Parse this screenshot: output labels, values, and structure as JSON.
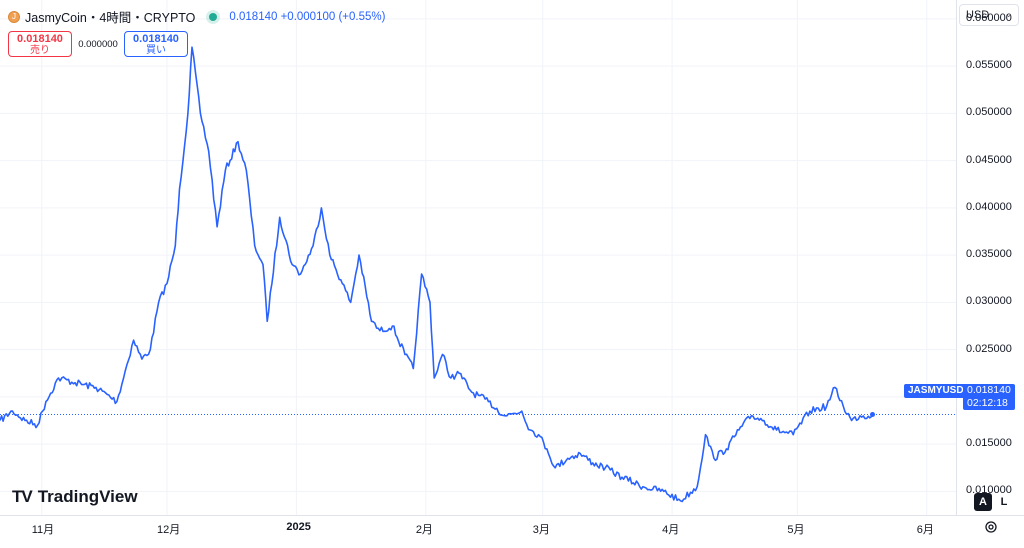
{
  "header": {
    "coin_icon_glyph": "J",
    "title": "JasmyCoin・4時間・CRYPTO",
    "price_change": "0.018140  +0.000100 (+0.55%)",
    "status_color": "#22ab94"
  },
  "trade": {
    "sell_price": "0.018140",
    "sell_label": "売り",
    "spread": "0.000000",
    "buy_price": "0.018140",
    "buy_label": "買い"
  },
  "currency": {
    "value": "USD",
    "chevron": "⌄"
  },
  "price_axis": {
    "ticks": [
      "0.060000",
      "0.055000",
      "0.050000",
      "0.045000",
      "0.040000",
      "0.035000",
      "0.030000",
      "0.025000",
      "0.020000",
      "0.015000",
      "0.010000"
    ]
  },
  "time_axis": {
    "ticks": [
      "11月",
      "12月",
      "2025",
      "2月",
      "3月",
      "4月",
      "5月",
      "6月"
    ]
  },
  "last_price": {
    "symbol": "JASMYUSD",
    "price": "0.018140",
    "countdown": "02:12:18"
  },
  "branding": {
    "logo_mark": "TV",
    "logo_text": "TradingView"
  },
  "scale_buttons": {
    "auto": "A",
    "log": "L"
  },
  "colors": {
    "line": "#2962ff",
    "sell": "#f23645",
    "buy": "#2962ff"
  },
  "chart_data": {
    "type": "line",
    "series": [
      {
        "name": "JASMYUSD",
        "x": [
          "2024-10-22",
          "2024-10-25",
          "2024-10-28",
          "2024-10-31",
          "2024-11-02",
          "2024-11-05",
          "2024-11-09",
          "2024-11-14",
          "2024-11-19",
          "2024-11-23",
          "2024-11-25",
          "2024-11-27",
          "2024-11-29",
          "2024-12-01",
          "2024-12-03",
          "2024-12-04",
          "2024-12-06",
          "2024-12-07",
          "2024-12-09",
          "2024-12-11",
          "2024-12-13",
          "2024-12-15",
          "2024-12-18",
          "2024-12-20",
          "2024-12-22",
          "2024-12-24",
          "2024-12-25",
          "2024-12-28",
          "2024-12-31",
          "2025-01-02",
          "2025-01-05",
          "2025-01-07",
          "2025-01-09",
          "2025-01-12",
          "2025-01-14",
          "2025-01-16",
          "2025-01-19",
          "2025-01-21",
          "2025-01-24",
          "2025-01-27",
          "2025-01-29",
          "2025-01-31",
          "2025-02-02",
          "2025-02-03",
          "2025-02-05",
          "2025-02-07",
          "2025-02-09",
          "2025-02-12",
          "2025-02-16",
          "2025-02-20",
          "2025-02-24",
          "2025-02-26",
          "2025-02-28",
          "2025-03-02",
          "2025-03-04",
          "2025-03-07",
          "2025-03-10",
          "2025-03-13",
          "2025-03-16",
          "2025-03-20",
          "2025-03-25",
          "2025-03-30",
          "2025-04-03",
          "2025-04-07",
          "2025-04-09",
          "2025-04-11",
          "2025-04-14",
          "2025-04-17",
          "2025-04-20",
          "2025-04-23",
          "2025-04-26",
          "2025-04-30",
          "2025-05-04",
          "2025-05-08",
          "2025-05-10",
          "2025-05-12",
          "2025-05-14",
          "2025-05-16",
          "2025-05-18",
          "2025-05-19"
        ],
        "values": [
          0.0175,
          0.0185,
          0.0175,
          0.017,
          0.0195,
          0.022,
          0.0215,
          0.021,
          0.0195,
          0.026,
          0.024,
          0.025,
          0.03,
          0.032,
          0.036,
          0.042,
          0.05,
          0.057,
          0.05,
          0.046,
          0.038,
          0.044,
          0.047,
          0.044,
          0.036,
          0.034,
          0.028,
          0.039,
          0.034,
          0.033,
          0.036,
          0.04,
          0.035,
          0.032,
          0.03,
          0.035,
          0.028,
          0.027,
          0.0275,
          0.0245,
          0.023,
          0.033,
          0.03,
          0.022,
          0.0245,
          0.022,
          0.0225,
          0.0205,
          0.0195,
          0.018,
          0.0185,
          0.0165,
          0.016,
          0.0145,
          0.0125,
          0.0135,
          0.014,
          0.013,
          0.0125,
          0.0115,
          0.0105,
          0.01,
          0.009,
          0.0105,
          0.016,
          0.0135,
          0.0145,
          0.0165,
          0.018,
          0.0175,
          0.0165,
          0.016,
          0.0185,
          0.019,
          0.021,
          0.019,
          0.0175,
          0.018,
          0.01795,
          0.01814
        ]
      }
    ],
    "ylim": [
      0.0075,
      0.062
    ],
    "xlim": [
      "2024-10-22",
      "2025-06-08"
    ],
    "last_value": 0.01814,
    "grid": true,
    "legend": "none"
  }
}
